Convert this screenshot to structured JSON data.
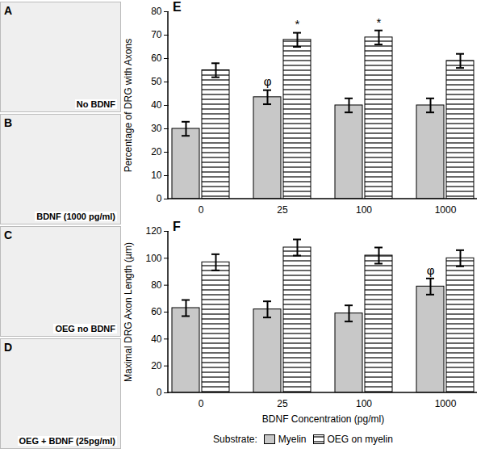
{
  "image_panels": [
    {
      "letter": "A",
      "label": "No BDNF"
    },
    {
      "letter": "B",
      "label": "BDNF (1000 pg/ml)"
    },
    {
      "letter": "C",
      "label": "OEG no BDNF"
    },
    {
      "letter": "D",
      "label": "OEG + BDNF (25pg/ml)"
    }
  ],
  "chart_data": [
    {
      "type": "bar",
      "panel": "E",
      "y_label": "Percentage of DRG with Axons",
      "categories": [
        "0",
        "25",
        "100",
        "1000"
      ],
      "series": [
        {
          "name": "Myelin",
          "color": "#c8c8c8",
          "values": [
            30,
            43.5,
            40,
            40
          ],
          "errors": [
            3,
            3,
            3,
            3
          ]
        },
        {
          "name": "OEG on myelin",
          "color": "#ffffff",
          "line_style": "horizontal",
          "values": [
            55,
            68,
            69,
            59
          ],
          "errors": [
            3,
            3,
            3,
            3
          ]
        }
      ],
      "annotations": [
        {
          "text": "φ",
          "category": "25",
          "series": "Myelin"
        },
        {
          "text": "*",
          "category": "25",
          "series": "OEG on myelin"
        },
        {
          "text": "*",
          "category": "100",
          "series": "OEG on myelin"
        }
      ],
      "ylim": [
        0,
        80
      ],
      "yticks": [
        0,
        10,
        20,
        30,
        40,
        50,
        60,
        70,
        80
      ],
      "grid": false
    },
    {
      "type": "bar",
      "panel": "F",
      "x_label": "BDNF Concentration (pg/ml)",
      "y_label": "Maximal DRG Axon Length (µm)",
      "categories": [
        "0",
        "25",
        "100",
        "1000"
      ],
      "series": [
        {
          "name": "Myelin",
          "color": "#c8c8c8",
          "values": [
            63,
            62,
            59,
            79
          ],
          "errors": [
            6,
            6,
            6,
            6
          ]
        },
        {
          "name": "OEG on myelin",
          "color": "#ffffff",
          "line_style": "horizontal",
          "values": [
            97,
            108,
            102,
            100
          ],
          "errors": [
            6,
            6,
            6,
            6
          ]
        }
      ],
      "annotations": [
        {
          "text": "φ",
          "category": "1000",
          "series": "Myelin"
        }
      ],
      "ylim": [
        0,
        120
      ],
      "yticks": [
        0,
        20,
        40,
        60,
        80,
        100,
        120
      ],
      "grid": false,
      "legend": "bottom",
      "legend_title": "Substrate:"
    }
  ]
}
